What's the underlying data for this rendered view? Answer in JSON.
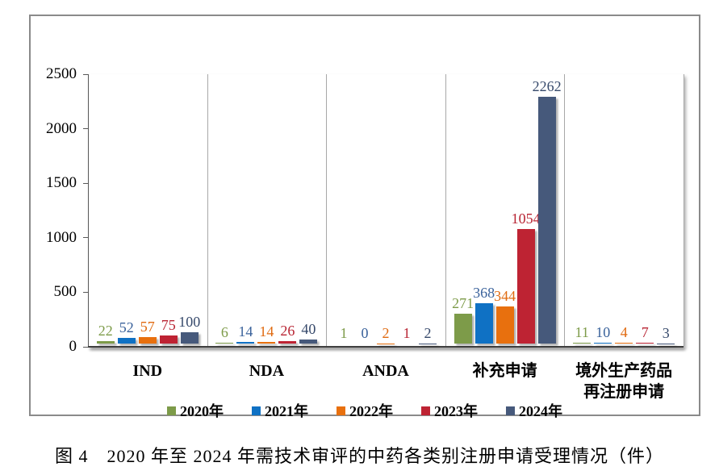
{
  "chart_data": {
    "type": "bar",
    "title": "",
    "categories": [
      "IND",
      "NDA",
      "ANDA",
      "补充申请",
      "境外生产药品\n再注册申请"
    ],
    "series": [
      {
        "name": "2020年",
        "color": "#7d9b49",
        "label_color": "#7d9b49",
        "values": [
          22,
          6,
          1,
          271,
          11
        ]
      },
      {
        "name": "2021年",
        "color": "#0f71c4",
        "label_color": "#3a629b",
        "values": [
          52,
          14,
          0,
          368,
          10
        ]
      },
      {
        "name": "2022年",
        "color": "#e8700e",
        "label_color": "#e06a10",
        "values": [
          57,
          14,
          2,
          344,
          4
        ]
      },
      {
        "name": "2023年",
        "color": "#be2333",
        "label_color": "#b82433",
        "values": [
          75,
          26,
          1,
          1054,
          7
        ]
      },
      {
        "name": "2024年",
        "color": "#46597b",
        "label_color": "#36496b",
        "values": [
          100,
          40,
          2,
          2262,
          3
        ]
      }
    ],
    "ylim": [
      0,
      2500
    ],
    "yticks": [
      0,
      500,
      1000,
      1500,
      2000,
      2500
    ],
    "xlabel": "",
    "ylabel": "",
    "grid": "vertical-category-separators",
    "legend_position": "bottom"
  },
  "caption": "图 4　2020 年至 2024 年需技术审评的中药各类别注册申请受理情况（件）"
}
